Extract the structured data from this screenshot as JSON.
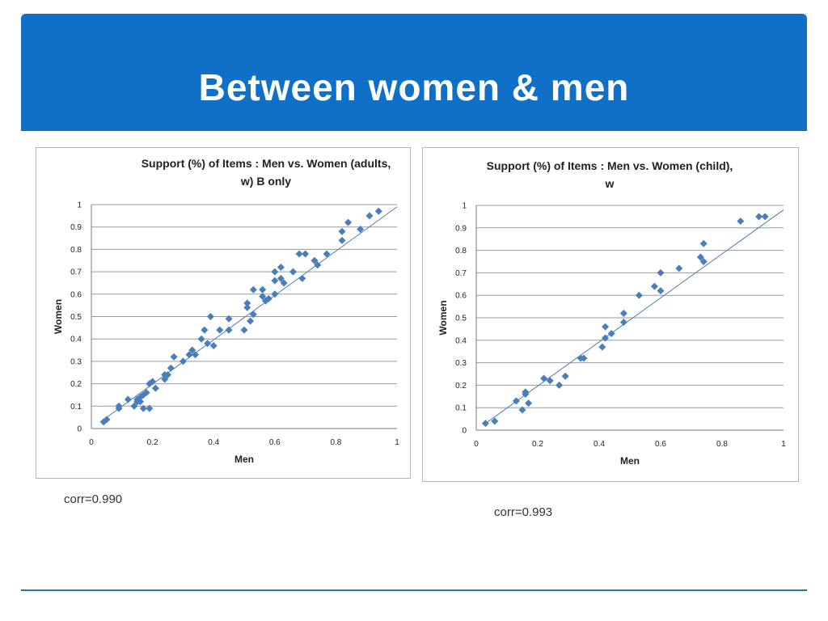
{
  "slide": {
    "title": "Between women & men",
    "corr_left": "corr=0.990",
    "corr_right": "corr=0.993"
  },
  "colors": {
    "banner": "#1070c8",
    "marker": "#4a7ebb",
    "trendline": "#4a7ebb",
    "grid": "#9a9a9a"
  },
  "chart_data": [
    {
      "type": "scatter",
      "title_lines": [
        "Support (%) of Items : Men vs. Women (adults,",
        "w) B only"
      ],
      "xlabel": "Men",
      "ylabel": "Women",
      "xlim": [
        0,
        1
      ],
      "ylim": [
        0,
        1
      ],
      "xticks": [
        "0",
        "0.2",
        "0.4",
        "0.6",
        "0.8",
        "1"
      ],
      "yticks": [
        "0",
        "0.1",
        "0.2",
        "0.3",
        "0.4",
        "0.5",
        "0.6",
        "0.7",
        "0.8",
        "0.9",
        "1"
      ],
      "grid": "horizontal",
      "trendline": [
        [
          0.03,
          0.03
        ],
        [
          1.0,
          0.99
        ]
      ],
      "points": [
        [
          0.04,
          0.03
        ],
        [
          0.05,
          0.04
        ],
        [
          0.09,
          0.09
        ],
        [
          0.09,
          0.1
        ],
        [
          0.12,
          0.13
        ],
        [
          0.14,
          0.1
        ],
        [
          0.15,
          0.13
        ],
        [
          0.15,
          0.12
        ],
        [
          0.16,
          0.14
        ],
        [
          0.16,
          0.12
        ],
        [
          0.17,
          0.15
        ],
        [
          0.17,
          0.09
        ],
        [
          0.18,
          0.16
        ],
        [
          0.19,
          0.09
        ],
        [
          0.19,
          0.2
        ],
        [
          0.2,
          0.21
        ],
        [
          0.21,
          0.18
        ],
        [
          0.24,
          0.22
        ],
        [
          0.24,
          0.24
        ],
        [
          0.25,
          0.24
        ],
        [
          0.26,
          0.27
        ],
        [
          0.27,
          0.32
        ],
        [
          0.3,
          0.3
        ],
        [
          0.32,
          0.33
        ],
        [
          0.33,
          0.35
        ],
        [
          0.34,
          0.33
        ],
        [
          0.36,
          0.4
        ],
        [
          0.37,
          0.44
        ],
        [
          0.38,
          0.38
        ],
        [
          0.39,
          0.5
        ],
        [
          0.4,
          0.37
        ],
        [
          0.42,
          0.44
        ],
        [
          0.45,
          0.44
        ],
        [
          0.45,
          0.49
        ],
        [
          0.5,
          0.44
        ],
        [
          0.51,
          0.54
        ],
        [
          0.51,
          0.56
        ],
        [
          0.52,
          0.48
        ],
        [
          0.53,
          0.51
        ],
        [
          0.53,
          0.62
        ],
        [
          0.56,
          0.62
        ],
        [
          0.56,
          0.59
        ],
        [
          0.57,
          0.57
        ],
        [
          0.58,
          0.58
        ],
        [
          0.6,
          0.6
        ],
        [
          0.6,
          0.66
        ],
        [
          0.6,
          0.7
        ],
        [
          0.62,
          0.72
        ],
        [
          0.62,
          0.67
        ],
        [
          0.63,
          0.65
        ],
        [
          0.66,
          0.7
        ],
        [
          0.68,
          0.78
        ],
        [
          0.69,
          0.67
        ],
        [
          0.7,
          0.78
        ],
        [
          0.73,
          0.75
        ],
        [
          0.74,
          0.73
        ],
        [
          0.77,
          0.78
        ],
        [
          0.82,
          0.84
        ],
        [
          0.82,
          0.88
        ],
        [
          0.84,
          0.92
        ],
        [
          0.88,
          0.89
        ],
        [
          0.91,
          0.95
        ],
        [
          0.94,
          0.97
        ]
      ]
    },
    {
      "type": "scatter",
      "title_lines": [
        "Support (%) of Items : Men vs. Women   (child),",
        "w"
      ],
      "xlabel": "Men",
      "ylabel": "Women",
      "xlim": [
        0,
        1
      ],
      "ylim": [
        0,
        1
      ],
      "xticks": [
        "0",
        "0.2",
        "0.4",
        "0.6",
        "0.8",
        "1"
      ],
      "yticks": [
        "0",
        "0.1",
        "0.2",
        "0.3",
        "0.4",
        "0.5",
        "0.6",
        "0.7",
        "0.8",
        "0.9",
        "1"
      ],
      "grid": "horizontal",
      "trendline": [
        [
          0.03,
          0.03
        ],
        [
          1.0,
          0.98
        ]
      ],
      "points": [
        [
          0.03,
          0.03
        ],
        [
          0.06,
          0.04
        ],
        [
          0.13,
          0.13
        ],
        [
          0.15,
          0.09
        ],
        [
          0.16,
          0.16
        ],
        [
          0.16,
          0.17
        ],
        [
          0.17,
          0.12
        ],
        [
          0.22,
          0.23
        ],
        [
          0.24,
          0.22
        ],
        [
          0.27,
          0.2
        ],
        [
          0.29,
          0.24
        ],
        [
          0.34,
          0.32
        ],
        [
          0.35,
          0.32
        ],
        [
          0.41,
          0.37
        ],
        [
          0.42,
          0.41
        ],
        [
          0.42,
          0.46
        ],
        [
          0.44,
          0.43
        ],
        [
          0.48,
          0.48
        ],
        [
          0.48,
          0.52
        ],
        [
          0.53,
          0.6
        ],
        [
          0.58,
          0.64
        ],
        [
          0.6,
          0.7
        ],
        [
          0.6,
          0.62
        ],
        [
          0.66,
          0.72
        ],
        [
          0.73,
          0.77
        ],
        [
          0.74,
          0.75
        ],
        [
          0.74,
          0.83
        ],
        [
          0.86,
          0.93
        ],
        [
          0.92,
          0.95
        ],
        [
          0.94,
          0.95
        ]
      ]
    }
  ]
}
